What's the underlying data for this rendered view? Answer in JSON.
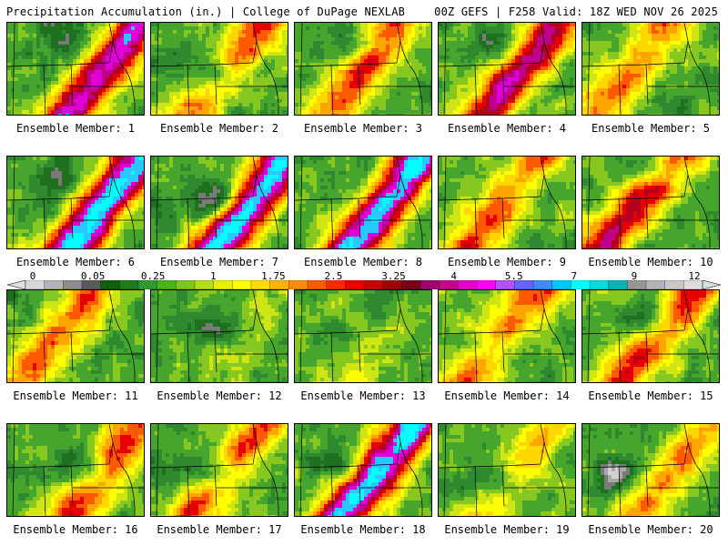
{
  "header": {
    "left_title": "Precipitation Accumulation (in.) | College of DuPage NEXLAB",
    "right_title": "00Z GEFS | F258 Valid: 18Z WED NOV 26 2025"
  },
  "colorbar": {
    "labels": [
      "0",
      "0.05",
      "0.25",
      "1",
      "1.75",
      "2.5",
      "3.25",
      "4",
      "5.5",
      "7",
      "9",
      "12"
    ],
    "colors": [
      "#d8d8d8",
      "#b4b4b4",
      "#8c8c8c",
      "#5a5a5a",
      "#0f5f0f",
      "#1e7a1e",
      "#2f9a2f",
      "#47b41e",
      "#7cc81e",
      "#b4dc1e",
      "#e6f000",
      "#ffff00",
      "#ffdc00",
      "#ffb400",
      "#ff8c00",
      "#ff5a00",
      "#ff2800",
      "#e60000",
      "#c80000",
      "#a00000",
      "#7a0014",
      "#a0006e",
      "#c8008c",
      "#e600c8",
      "#ff00ff",
      "#b450ff",
      "#6464ff",
      "#3c8cff",
      "#00c8ff",
      "#00ffff",
      "#00dcdc",
      "#00b4b4",
      "#969696",
      "#b4b4b4",
      "#c8c8c8",
      "#dcdcdc"
    ]
  },
  "field_colors": [
    "#d2d2d2",
    "#a8a8a8",
    "#7a7a7a",
    "#1f701f",
    "#2f8a2f",
    "#46a52c",
    "#86c81f",
    "#cfe614",
    "#ffff00",
    "#ffd700",
    "#ffa500",
    "#ff5a00",
    "#e60000",
    "#b4001e",
    "#c0008c",
    "#e000d8",
    "#28c8ff",
    "#00ffff"
  ],
  "members": [
    {
      "label": "Ensemble Member: 1"
    },
    {
      "label": "Ensemble Member: 2"
    },
    {
      "label": "Ensemble Member: 3"
    },
    {
      "label": "Ensemble Member: 4"
    },
    {
      "label": "Ensemble Member: 5"
    },
    {
      "label": "Ensemble Member: 6"
    },
    {
      "label": "Ensemble Member: 7"
    },
    {
      "label": "Ensemble Member: 8"
    },
    {
      "label": "Ensemble Member: 9"
    },
    {
      "label": "Ensemble Member: 10"
    },
    {
      "label": "Ensemble Member: 11"
    },
    {
      "label": "Ensemble Member: 12"
    },
    {
      "label": "Ensemble Member: 13"
    },
    {
      "label": "Ensemble Member: 14"
    },
    {
      "label": "Ensemble Member: 15"
    },
    {
      "label": "Ensemble Member: 16"
    },
    {
      "label": "Ensemble Member: 17"
    },
    {
      "label": "Ensemble Member: 18"
    },
    {
      "label": "Ensemble Member: 19"
    },
    {
      "label": "Ensemble Member: 20"
    }
  ]
}
